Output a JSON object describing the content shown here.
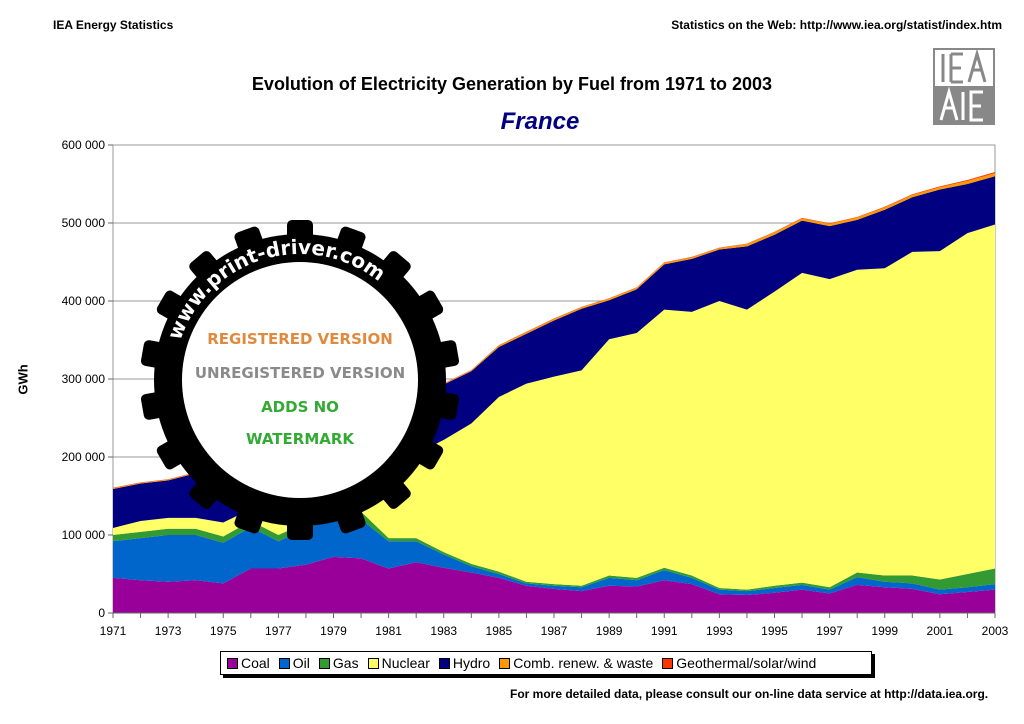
{
  "header": {
    "left": "IEA Energy Statistics",
    "right": "Statistics on the Web: http://www.iea.org/statist/index.htm"
  },
  "logo": {
    "text": "IEA AIE"
  },
  "footer": "For more detailed data, please consult our on-line data service at http://data.iea.org.",
  "watermark": {
    "ring": "www.print-driver.com",
    "lines": [
      "UNREGISTERED VERSION",
      "REGISTERED VERSION",
      "ADDS NO",
      "WATERMARK"
    ]
  },
  "chart_data": {
    "type": "area",
    "stacked": true,
    "title": "Evolution of Electricity Generation by Fuel from 1971 to 2003",
    "subtitle": "France",
    "ylabel": "GWh",
    "xlabel": "",
    "ylim": [
      0,
      600000
    ],
    "yticks": [
      0,
      100000,
      200000,
      300000,
      400000,
      500000,
      600000
    ],
    "ytick_labels": [
      "0",
      "100 000",
      "200 000",
      "300 000",
      "400 000",
      "500 000",
      "600 000"
    ],
    "xtick_labels": [
      "1971",
      "1973",
      "1975",
      "1977",
      "1979",
      "1981",
      "1983",
      "1985",
      "1987",
      "1989",
      "1991",
      "1993",
      "1995",
      "1997",
      "1999",
      "2001",
      "2003"
    ],
    "grid": true,
    "legend_position": "bottom",
    "x": [
      1971,
      1972,
      1973,
      1974,
      1975,
      1976,
      1977,
      1978,
      1979,
      1980,
      1981,
      1982,
      1983,
      1984,
      1985,
      1986,
      1987,
      1988,
      1989,
      1990,
      1991,
      1992,
      1993,
      1994,
      1995,
      1996,
      1997,
      1998,
      1999,
      2000,
      2001,
      2002,
      2003
    ],
    "series": [
      {
        "name": "Coal",
        "color": "#990099",
        "values": [
          45000,
          42000,
          40000,
          42000,
          38000,
          57000,
          57000,
          62000,
          72000,
          70000,
          57000,
          65000,
          58000,
          52000,
          45000,
          35000,
          31000,
          28000,
          35000,
          34000,
          42000,
          37000,
          24000,
          23000,
          26000,
          30000,
          25000,
          36000,
          33000,
          31000,
          24000,
          27000,
          30000
        ]
      },
      {
        "name": "Oil",
        "color": "#0066cc",
        "values": [
          47000,
          54000,
          60000,
          58000,
          52000,
          53000,
          35000,
          46000,
          51000,
          50000,
          35000,
          27000,
          17000,
          8000,
          5000,
          3000,
          4000,
          5000,
          10000,
          8000,
          13000,
          8000,
          6000,
          5000,
          6000,
          6000,
          5000,
          10000,
          7000,
          7000,
          6000,
          6000,
          7000
        ]
      },
      {
        "name": "Gas",
        "color": "#339933",
        "values": [
          8000,
          8000,
          8000,
          8000,
          8000,
          8000,
          8000,
          8000,
          10000,
          10000,
          4000,
          4000,
          3000,
          3000,
          3000,
          2000,
          2000,
          2000,
          3000,
          3000,
          3000,
          3000,
          2000,
          2000,
          3000,
          3000,
          3000,
          6000,
          8000,
          10000,
          13000,
          17000,
          20000
        ]
      },
      {
        "name": "Nuclear",
        "color": "#ffff66",
        "values": [
          9000,
          14000,
          14000,
          14000,
          18000,
          15000,
          18000,
          30000,
          40000,
          61000,
          105000,
          108000,
          144000,
          180000,
          224000,
          254000,
          266000,
          276000,
          303000,
          314000,
          331000,
          338000,
          368000,
          359000,
          377000,
          397000,
          395000,
          388000,
          394000,
          415000,
          421000,
          437000,
          441000
        ]
      },
      {
        "name": "Hydro",
        "color": "#000080",
        "values": [
          50000,
          48000,
          48000,
          57000,
          60000,
          42000,
          77000,
          68000,
          67000,
          70000,
          71000,
          71000,
          71000,
          67000,
          64000,
          64000,
          72000,
          79000,
          50000,
          56000,
          58000,
          68000,
          66000,
          81000,
          73000,
          67000,
          68000,
          64000,
          75000,
          70000,
          79000,
          63000,
          62000
        ]
      },
      {
        "name": "Comb. renew. & waste",
        "color": "#ff9900",
        "values": [
          1000,
          1000,
          1000,
          1000,
          1000,
          1000,
          1000,
          1000,
          1000,
          1000,
          1000,
          1000,
          1000,
          1000,
          2000,
          2000,
          2000,
          2000,
          2000,
          2000,
          2000,
          2000,
          2000,
          3000,
          3000,
          3000,
          3000,
          3000,
          3000,
          3000,
          3000,
          4000,
          4000
        ]
      },
      {
        "name": "Geothermal/solar/wind",
        "color": "#ff3300",
        "values": [
          500,
          500,
          500,
          500,
          500,
          500,
          500,
          500,
          500,
          500,
          500,
          500,
          500,
          500,
          500,
          500,
          500,
          500,
          500,
          500,
          500,
          500,
          500,
          600,
          600,
          600,
          700,
          700,
          800,
          900,
          1000,
          1200,
          1400
        ]
      }
    ]
  }
}
